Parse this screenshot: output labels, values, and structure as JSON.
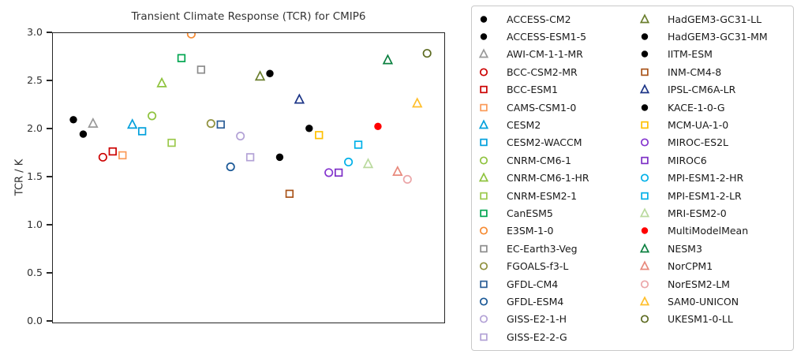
{
  "figure": {
    "title": "Transient Climate Response (TCR) for CMIP6",
    "ylabel": "TCR / K"
  },
  "chart_data": {
    "type": "scatter",
    "title": "Transient Climate Response (TCR) for CMIP6",
    "xlabel": "",
    "ylabel": "TCR / K",
    "ylim": [
      0.0,
      3.0
    ],
    "yticks": [
      0.0,
      0.5,
      1.0,
      1.5,
      2.0,
      2.5,
      3.0
    ],
    "grid": false,
    "legend_position": "right-of-plot",
    "legend_columns": 2,
    "legend_column_split": 19,
    "units": "K",
    "series": [
      {
        "name": "ACCESS-CM2",
        "value": 2.1,
        "marker": "circle",
        "color": "#000000",
        "fill": "filled"
      },
      {
        "name": "ACCESS-ESM1-5",
        "value": 1.95,
        "marker": "circle",
        "color": "#000000",
        "fill": "filled"
      },
      {
        "name": "AWI-CM-1-1-MR",
        "value": 2.06,
        "marker": "triangle",
        "color": "#999999",
        "fill": "open"
      },
      {
        "name": "BCC-CSM2-MR",
        "value": 1.71,
        "marker": "circle",
        "color": "#cc0000",
        "fill": "open"
      },
      {
        "name": "BCC-ESM1",
        "value": 1.77,
        "marker": "square",
        "color": "#cc0000",
        "fill": "open"
      },
      {
        "name": "CAMS-CSM1-0",
        "value": 1.73,
        "marker": "square",
        "color": "#fb9a58",
        "fill": "open"
      },
      {
        "name": "CESM2",
        "value": 2.05,
        "marker": "triangle",
        "color": "#00a0dc",
        "fill": "open"
      },
      {
        "name": "CESM2-WACCM",
        "value": 1.98,
        "marker": "square",
        "color": "#00a0dc",
        "fill": "open"
      },
      {
        "name": "CNRM-CM6-1",
        "value": 2.14,
        "marker": "circle",
        "color": "#8fc33e",
        "fill": "open"
      },
      {
        "name": "CNRM-CM6-1-HR",
        "value": 2.48,
        "marker": "triangle",
        "color": "#8fc33e",
        "fill": "open"
      },
      {
        "name": "CNRM-ESM2-1",
        "value": 1.86,
        "marker": "square",
        "color": "#9bc94c",
        "fill": "open"
      },
      {
        "name": "CanESM5",
        "value": 2.74,
        "marker": "square",
        "color": "#00a550",
        "fill": "open"
      },
      {
        "name": "E3SM-1-0",
        "value": 2.99,
        "marker": "circle",
        "color": "#f68b33",
        "fill": "open"
      },
      {
        "name": "EC-Earth3-Veg",
        "value": 2.62,
        "marker": "square",
        "color": "#8c8c8c",
        "fill": "open"
      },
      {
        "name": "FGOALS-f3-L",
        "value": 2.06,
        "marker": "circle",
        "color": "#90913e",
        "fill": "open"
      },
      {
        "name": "GFDL-CM4",
        "value": 2.05,
        "marker": "square",
        "color": "#2b5d96",
        "fill": "open"
      },
      {
        "name": "GFDL-ESM4",
        "value": 1.61,
        "marker": "circle",
        "color": "#1a5896",
        "fill": "open"
      },
      {
        "name": "GISS-E2-1-H",
        "value": 1.93,
        "marker": "circle",
        "color": "#b3a2d6",
        "fill": "open"
      },
      {
        "name": "GISS-E2-2-G",
        "value": 1.71,
        "marker": "square",
        "color": "#b3a2d6",
        "fill": "open"
      },
      {
        "name": "HadGEM3-GC31-LL",
        "value": 2.55,
        "marker": "triangle",
        "color": "#6b7f2e",
        "fill": "open"
      },
      {
        "name": "HadGEM3-GC31-MM",
        "value": 2.58,
        "marker": "circle",
        "color": "#000000",
        "fill": "filled"
      },
      {
        "name": "IITM-ESM",
        "value": 1.71,
        "marker": "circle",
        "color": "#000000",
        "fill": "filled"
      },
      {
        "name": "INM-CM4-8",
        "value": 1.33,
        "marker": "square",
        "color": "#a9541a",
        "fill": "open"
      },
      {
        "name": "IPSL-CM6A-LR",
        "value": 2.31,
        "marker": "triangle",
        "color": "#1c3587",
        "fill": "open"
      },
      {
        "name": "KACE-1-0-G",
        "value": 2.01,
        "marker": "circle",
        "color": "#000000",
        "fill": "filled"
      },
      {
        "name": "MCM-UA-1-0",
        "value": 1.94,
        "marker": "square",
        "color": "#ffc000",
        "fill": "open"
      },
      {
        "name": "MIROC-ES2L",
        "value": 1.55,
        "marker": "circle",
        "color": "#8535cf",
        "fill": "open"
      },
      {
        "name": "MIROC6",
        "value": 1.55,
        "marker": "square",
        "color": "#7d2fc6",
        "fill": "open"
      },
      {
        "name": "MPI-ESM1-2-HR",
        "value": 1.66,
        "marker": "circle",
        "color": "#00b0e8",
        "fill": "open"
      },
      {
        "name": "MPI-ESM1-2-LR",
        "value": 1.84,
        "marker": "square",
        "color": "#00b0e8",
        "fill": "open"
      },
      {
        "name": "MRI-ESM2-0",
        "value": 1.64,
        "marker": "triangle",
        "color": "#bada9e",
        "fill": "open"
      },
      {
        "name": "MultiModelMean",
        "value": 2.03,
        "marker": "circle",
        "color": "#ff0000",
        "fill": "filled"
      },
      {
        "name": "NESM3",
        "value": 2.72,
        "marker": "triangle",
        "color": "#0b8040",
        "fill": "open"
      },
      {
        "name": "NorCPM1",
        "value": 1.56,
        "marker": "triangle",
        "color": "#e8897c",
        "fill": "open"
      },
      {
        "name": "NorESM2-LM",
        "value": 1.48,
        "marker": "circle",
        "color": "#eba6a8",
        "fill": "open"
      },
      {
        "name": "SAM0-UNICON",
        "value": 2.27,
        "marker": "triangle",
        "color": "#ffbf2b",
        "fill": "open"
      },
      {
        "name": "UKESM1-0-LL",
        "value": 2.79,
        "marker": "circle",
        "color": "#5d6b21",
        "fill": "open"
      }
    ]
  }
}
